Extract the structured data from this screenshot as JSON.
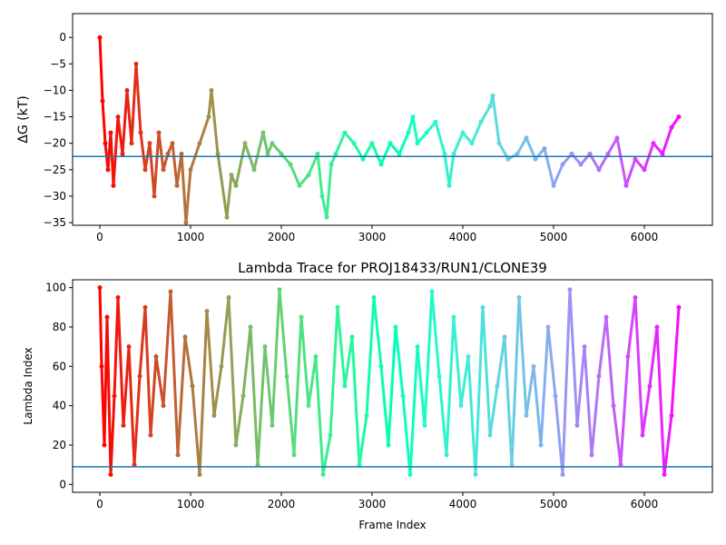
{
  "chart_data": [
    {
      "type": "scatter",
      "title": "",
      "xlabel": "",
      "ylabel": "ΔG (kT)",
      "xlim": [
        -300,
        6750
      ],
      "ylim": [
        -35.5,
        4.5
      ],
      "xticks": [
        0,
        1000,
        2000,
        3000,
        4000,
        5000,
        6000
      ],
      "yticks": [
        0,
        -5,
        -10,
        -15,
        -20,
        -25,
        -30,
        -35
      ],
      "hline": -22.5,
      "hline_color": "#1f77b4",
      "colormap": "rainbow (frame index: late=violet, early=red)",
      "series": [
        {
          "x": [
            0,
            30,
            60,
            90,
            120,
            150,
            200,
            250,
            300,
            350,
            400,
            450,
            500,
            550,
            600,
            650,
            700,
            750,
            800,
            850,
            900,
            950,
            1000,
            1100,
            1200,
            1230,
            1300,
            1400,
            1450,
            1500,
            1600,
            1700,
            1800,
            1850,
            1900,
            2000,
            2100,
            2200,
            2300,
            2400,
            2450,
            2500,
            2550,
            2600,
            2700,
            2800,
            2900,
            3000,
            3100,
            3200,
            3300,
            3400,
            3450,
            3500,
            3600,
            3700,
            3800,
            3850,
            3900,
            4000,
            4100,
            4200,
            4300,
            4330,
            4400,
            4500,
            4600,
            4700,
            4800,
            4900,
            5000,
            5100,
            5200,
            5300,
            5400,
            5500,
            5600,
            5700,
            5800,
            5900,
            6000,
            6100,
            6200,
            6300,
            6380
          ],
          "y": [
            0,
            -12,
            -20,
            -25,
            -18,
            -28,
            -15,
            -22,
            -10,
            -20,
            -5,
            -18,
            -25,
            -20,
            -30,
            -18,
            -25,
            -22,
            -20,
            -28,
            -22,
            -35,
            -25,
            -20,
            -15,
            -10,
            -22,
            -34,
            -26,
            -28,
            -20,
            -25,
            -18,
            -22,
            -20,
            -22,
            -24,
            -28,
            -26,
            -22,
            -30,
            -34,
            -24,
            -22,
            -18,
            -20,
            -23,
            -20,
            -24,
            -20,
            -22,
            -18,
            -15,
            -20,
            -18,
            -16,
            -22,
            -28,
            -22,
            -18,
            -20,
            -16,
            -13,
            -11,
            -20,
            -23,
            -22,
            -19,
            -23,
            -21,
            -28,
            -24,
            -22,
            -24,
            -22,
            -25,
            -22,
            -19,
            -28,
            -23,
            -25,
            -20,
            -22,
            -17,
            -15
          ]
        }
      ]
    },
    {
      "type": "scatter",
      "title": "Lambda Trace for PROJ18433/RUN1/CLONE39",
      "xlabel": "Frame Index",
      "ylabel": "Lambda Index",
      "xlim": [
        -300,
        6750
      ],
      "ylim": [
        -4,
        104
      ],
      "xticks": [
        0,
        1000,
        2000,
        3000,
        4000,
        5000,
        6000
      ],
      "yticks": [
        0,
        20,
        40,
        60,
        80,
        100
      ],
      "hline": 9,
      "hline_color": "#1f77b4",
      "colormap": "rainbow (frame index: late=violet, early=red)",
      "series": [
        {
          "x": [
            0,
            20,
            50,
            80,
            120,
            160,
            200,
            260,
            320,
            380,
            440,
            500,
            560,
            620,
            700,
            780,
            860,
            940,
            1020,
            1100,
            1180,
            1260,
            1340,
            1420,
            1500,
            1580,
            1660,
            1740,
            1820,
            1900,
            1980,
            2060,
            2140,
            2220,
            2300,
            2380,
            2460,
            2540,
            2620,
            2700,
            2780,
            2860,
            2940,
            3020,
            3100,
            3180,
            3260,
            3340,
            3420,
            3500,
            3580,
            3660,
            3740,
            3820,
            3900,
            3980,
            4060,
            4140,
            4220,
            4300,
            4380,
            4460,
            4540,
            4620,
            4700,
            4780,
            4860,
            4940,
            5020,
            5100,
            5180,
            5260,
            5340,
            5420,
            5500,
            5580,
            5660,
            5740,
            5820,
            5900,
            5980,
            6060,
            6140,
            6220,
            6300,
            6380
          ],
          "y": [
            100,
            60,
            20,
            85,
            5,
            45,
            95,
            30,
            70,
            10,
            55,
            90,
            25,
            65,
            40,
            98,
            15,
            75,
            50,
            5,
            88,
            35,
            60,
            95,
            20,
            45,
            80,
            10,
            70,
            30,
            99,
            55,
            15,
            85,
            40,
            65,
            5,
            25,
            90,
            50,
            75,
            10,
            35,
            95,
            60,
            20,
            80,
            45,
            5,
            70,
            30,
            98,
            55,
            15,
            85,
            40,
            65,
            5,
            90,
            25,
            50,
            75,
            10,
            95,
            35,
            60,
            20,
            80,
            45,
            5,
            99,
            30,
            70,
            15,
            55,
            85,
            40,
            10,
            65,
            95,
            25,
            50,
            80,
            5,
            35,
            90
          ]
        }
      ]
    }
  ]
}
